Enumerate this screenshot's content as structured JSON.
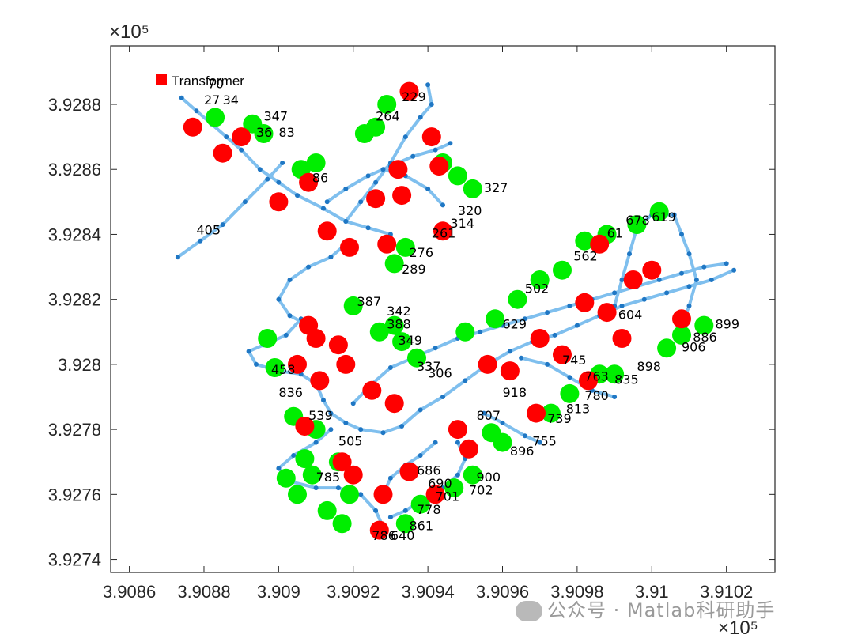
{
  "watermark": {
    "text": "公众号 · Matlab科研助手",
    "icon": "wechat-icon"
  },
  "chart_data": {
    "type": "scatter",
    "title": "",
    "xlabel": "",
    "ylabel": "",
    "x_exponent_label": "×10⁵",
    "y_exponent_label": "×10⁵",
    "xlim": [
      3.90855,
      3.91033
    ],
    "ylim": [
      3.92736,
      3.92898
    ],
    "x_ticks": [
      3.9086,
      3.9088,
      3.909,
      3.9092,
      3.9094,
      3.9096,
      3.9098,
      3.91,
      3.9102
    ],
    "x_tick_labels": [
      "3.9086",
      "3.9088",
      "3.909",
      "3.9092",
      "3.9094",
      "3.9096",
      "3.9098",
      "3.91",
      "3.9102"
    ],
    "y_ticks": [
      3.9274,
      3.9276,
      3.9278,
      3.928,
      3.9282,
      3.9284,
      3.9286,
      3.9288
    ],
    "y_tick_labels": [
      "3.9274",
      "3.9276",
      "3.9278",
      "3.928",
      "3.9282",
      "3.9284",
      "3.9286",
      "3.9288"
    ],
    "grid": false,
    "legend": {
      "position": "top-left",
      "entries": [
        {
          "name": "Transformer",
          "color": "#ff0000"
        }
      ]
    },
    "colors": {
      "line": "#7fbfee",
      "node": "#1f77c4",
      "transformer": "#ff0000",
      "load": "#00ee00",
      "axis": "#262626"
    },
    "paths": [
      [
        [
          3.90874,
          3.92882
        ],
        [
          3.90878,
          3.92878
        ],
        [
          3.90882,
          3.92874
        ],
        [
          3.90886,
          3.9287
        ],
        [
          3.9089,
          3.92866
        ],
        [
          3.90895,
          3.9286
        ],
        [
          3.909,
          3.92856
        ],
        [
          3.90905,
          3.92852
        ],
        [
          3.90912,
          3.92848
        ],
        [
          3.90918,
          3.92844
        ],
        [
          3.90924,
          3.92842
        ],
        [
          3.9093,
          3.9284
        ]
      ],
      [
        [
          3.90873,
          3.92833
        ],
        [
          3.90879,
          3.92838
        ],
        [
          3.90885,
          3.92843
        ],
        [
          3.90891,
          3.9285
        ],
        [
          3.90897,
          3.92857
        ],
        [
          3.90901,
          3.92862
        ]
      ],
      [
        [
          3.90913,
          3.9285
        ],
        [
          3.90918,
          3.92854
        ],
        [
          3.90924,
          3.92858
        ],
        [
          3.9093,
          3.92861
        ],
        [
          3.90936,
          3.92864
        ],
        [
          3.90942,
          3.92866
        ],
        [
          3.90946,
          3.92868
        ]
      ],
      [
        [
          3.90918,
          3.92844
        ],
        [
          3.90922,
          3.9285
        ],
        [
          3.90926,
          3.92856
        ],
        [
          3.9093,
          3.92862
        ],
        [
          3.90934,
          3.9287
        ],
        [
          3.90938,
          3.92876
        ],
        [
          3.90941,
          3.9288
        ],
        [
          3.9094,
          3.92886
        ]
      ],
      [
        [
          3.90928,
          3.9286
        ],
        [
          3.90934,
          3.92858
        ],
        [
          3.9094,
          3.92854
        ],
        [
          3.90944,
          3.92849
        ]
      ],
      [
        [
          3.90919,
          3.92838
        ],
        [
          3.90914,
          3.92833
        ],
        [
          3.90908,
          3.9283
        ],
        [
          3.90903,
          3.92826
        ],
        [
          3.909,
          3.9282
        ],
        [
          3.90903,
          3.92815
        ],
        [
          3.90908,
          3.92812
        ]
      ],
      [
        [
          3.90906,
          3.92814
        ],
        [
          3.90902,
          3.92809
        ],
        [
          3.90896,
          3.92806
        ],
        [
          3.90892,
          3.92804
        ],
        [
          3.90894,
          3.928
        ],
        [
          3.909,
          3.92798
        ],
        [
          3.90906,
          3.92797
        ],
        [
          3.9091,
          3.92794
        ],
        [
          3.90912,
          3.92789
        ],
        [
          3.90914,
          3.92785
        ],
        [
          3.90918,
          3.92782
        ],
        [
          3.90922,
          3.9278
        ],
        [
          3.90928,
          3.92779
        ],
        [
          3.90933,
          3.92781
        ],
        [
          3.90938,
          3.92786
        ],
        [
          3.90944,
          3.9279
        ],
        [
          3.9095,
          3.92795
        ],
        [
          3.90956,
          3.928
        ],
        [
          3.90962,
          3.92804
        ],
        [
          3.90968,
          3.92807
        ],
        [
          3.90974,
          3.92809
        ],
        [
          3.9098,
          3.92812
        ],
        [
          3.90986,
          3.92815
        ],
        [
          3.90992,
          3.92818
        ],
        [
          3.90998,
          3.9282
        ],
        [
          3.91004,
          3.92822
        ],
        [
          3.9101,
          3.92824
        ],
        [
          3.91016,
          3.92826
        ],
        [
          3.91022,
          3.92829
        ]
      ],
      [
        [
          3.9092,
          3.92788
        ],
        [
          3.90925,
          3.92794
        ],
        [
          3.9093,
          3.92799
        ],
        [
          3.90936,
          3.92802
        ],
        [
          3.90942,
          3.92805
        ],
        [
          3.90948,
          3.92808
        ],
        [
          3.90954,
          3.9281
        ],
        [
          3.9096,
          3.92812
        ],
        [
          3.90966,
          3.92814
        ],
        [
          3.90972,
          3.92816
        ],
        [
          3.90978,
          3.92818
        ],
        [
          3.90984,
          3.9282
        ],
        [
          3.9099,
          3.92822
        ],
        [
          3.90996,
          3.92824
        ],
        [
          3.91002,
          3.92826
        ],
        [
          3.91008,
          3.92828
        ],
        [
          3.91014,
          3.9283
        ],
        [
          3.9102,
          3.92831
        ]
      ],
      [
        [
          3.90914,
          3.9278
        ],
        [
          3.9091,
          3.92776
        ],
        [
          3.90904,
          3.92772
        ],
        [
          3.909,
          3.92768
        ],
        [
          3.90903,
          3.92764
        ],
        [
          3.9091,
          3.92762
        ],
        [
          3.90916,
          3.92762
        ],
        [
          3.90922,
          3.9276
        ],
        [
          3.90926,
          3.92755
        ],
        [
          3.90928,
          3.9275
        ]
      ],
      [
        [
          3.90942,
          3.92776
        ],
        [
          3.90938,
          3.92772
        ],
        [
          3.90934,
          3.92769
        ],
        [
          3.9093,
          3.92765
        ],
        [
          3.90928,
          3.9276
        ]
      ],
      [
        [
          3.90948,
          3.92776
        ],
        [
          3.9095,
          3.92771
        ],
        [
          3.90948,
          3.92766
        ],
        [
          3.90944,
          3.92762
        ],
        [
          3.90938,
          3.92758
        ],
        [
          3.90934,
          3.92755
        ],
        [
          3.9093,
          3.92753
        ]
      ],
      [
        [
          3.90955,
          3.92785
        ],
        [
          3.9096,
          3.92782
        ],
        [
          3.90966,
          3.92778
        ],
        [
          3.9097,
          3.92776
        ]
      ],
      [
        [
          3.90965,
          3.92802
        ],
        [
          3.90972,
          3.928
        ],
        [
          3.90978,
          3.92796
        ],
        [
          3.90984,
          3.92792
        ],
        [
          3.9099,
          3.9279
        ]
      ],
      [
        [
          3.9099,
          3.92818
        ],
        [
          3.90992,
          3.92826
        ],
        [
          3.90994,
          3.92834
        ],
        [
          3.90996,
          3.92842
        ],
        [
          3.91,
          3.92846
        ],
        [
          3.91006,
          3.92846
        ]
      ],
      [
        [
          3.91006,
          3.92846
        ],
        [
          3.91008,
          3.9284
        ],
        [
          3.9101,
          3.92834
        ],
        [
          3.91012,
          3.92826
        ],
        [
          3.9101,
          3.92818
        ],
        [
          3.91008,
          3.92812
        ]
      ]
    ],
    "transformers": [
      [
        3.90877,
        3.92873
      ],
      [
        3.90885,
        3.92865
      ],
      [
        3.9089,
        3.9287
      ],
      [
        3.909,
        3.9285
      ],
      [
        3.90908,
        3.92856
      ],
      [
        3.90913,
        3.92841
      ],
      [
        3.90919,
        3.92836
      ],
      [
        3.90926,
        3.92851
      ],
      [
        3.90932,
        3.9286
      ],
      [
        3.90933,
        3.92852
      ],
      [
        3.90935,
        3.92884
      ],
      [
        3.90941,
        3.9287
      ],
      [
        3.90943,
        3.92861
      ],
      [
        3.90929,
        3.92837
      ],
      [
        3.90944,
        3.92841
      ],
      [
        3.90908,
        3.92812
      ],
      [
        3.9091,
        3.92808
      ],
      [
        3.90916,
        3.92806
      ],
      [
        3.90905,
        3.928
      ],
      [
        3.90911,
        3.92795
      ],
      [
        3.90918,
        3.928
      ],
      [
        3.90925,
        3.92792
      ],
      [
        3.90931,
        3.92788
      ],
      [
        3.90948,
        3.9278
      ],
      [
        3.90951,
        3.92774
      ],
      [
        3.90935,
        3.92767
      ],
      [
        3.90928,
        3.9276
      ],
      [
        3.90942,
        3.9276
      ],
      [
        3.90917,
        3.9277
      ],
      [
        3.9092,
        3.92766
      ],
      [
        3.90927,
        3.92749
      ],
      [
        3.90907,
        3.92781
      ],
      [
        3.90956,
        3.928
      ],
      [
        3.90962,
        3.92798
      ],
      [
        3.9097,
        3.92808
      ],
      [
        3.90976,
        3.92803
      ],
      [
        3.90983,
        3.92795
      ],
      [
        3.90969,
        3.92785
      ],
      [
        3.90982,
        3.92819
      ],
      [
        3.90988,
        3.92816
      ],
      [
        3.90995,
        3.92826
      ],
      [
        3.91,
        3.92829
      ],
      [
        3.90986,
        3.92837
      ],
      [
        3.91008,
        3.92814
      ],
      [
        3.90992,
        3.92808
      ]
    ],
    "loads": [
      [
        3.90883,
        3.92876
      ],
      [
        3.90893,
        3.92874
      ],
      [
        3.90896,
        3.92871
      ],
      [
        3.90906,
        3.9286
      ],
      [
        3.9091,
        3.92862
      ],
      [
        3.90923,
        3.92871
      ],
      [
        3.90926,
        3.92873
      ],
      [
        3.90929,
        3.9288
      ],
      [
        3.90944,
        3.92862
      ],
      [
        3.90948,
        3.92858
      ],
      [
        3.90934,
        3.92836
      ],
      [
        3.90931,
        3.92831
      ],
      [
        3.90952,
        3.92854
      ],
      [
        3.90907,
        3.92771
      ],
      [
        3.90909,
        3.92766
      ],
      [
        3.9091,
        3.9278
      ],
      [
        3.90916,
        3.9277
      ],
      [
        3.90919,
        3.9276
      ],
      [
        3.90917,
        3.92751
      ],
      [
        3.90897,
        3.92808
      ],
      [
        3.90899,
        3.92799
      ],
      [
        3.90904,
        3.92784
      ],
      [
        3.90902,
        3.92765
      ],
      [
        3.90905,
        3.9276
      ],
      [
        3.90913,
        3.92755
      ],
      [
        3.90937,
        3.92802
      ],
      [
        3.90931,
        3.92812
      ],
      [
        3.90927,
        3.9281
      ],
      [
        3.9092,
        3.92818
      ],
      [
        3.90933,
        3.92807
      ],
      [
        3.90934,
        3.92751
      ],
      [
        3.90938,
        3.92757
      ],
      [
        3.90947,
        3.92762
      ],
      [
        3.90952,
        3.92766
      ],
      [
        3.9096,
        3.92776
      ],
      [
        3.90957,
        3.92779
      ],
      [
        3.90973,
        3.92785
      ],
      [
        3.90978,
        3.92791
      ],
      [
        3.9099,
        3.92797
      ],
      [
        3.90986,
        3.92797
      ],
      [
        3.91004,
        3.92805
      ],
      [
        3.91008,
        3.92809
      ],
      [
        3.91014,
        3.92812
      ],
      [
        3.9095,
        3.9281
      ],
      [
        3.90958,
        3.92814
      ],
      [
        3.90964,
        3.9282
      ],
      [
        3.9097,
        3.92826
      ],
      [
        3.90976,
        3.92829
      ],
      [
        3.90982,
        3.92838
      ],
      [
        3.90988,
        3.9284
      ],
      [
        3.90996,
        3.92843
      ],
      [
        3.91002,
        3.92847
      ]
    ],
    "node_labels": [
      {
        "text": "27",
        "x": 3.9088,
        "y": 3.9288
      },
      {
        "text": "34",
        "x": 3.90885,
        "y": 3.9288
      },
      {
        "text": "70",
        "x": 3.90881,
        "y": 3.92885
      },
      {
        "text": "347",
        "x": 3.90896,
        "y": 3.92875
      },
      {
        "text": "36",
        "x": 3.90894,
        "y": 3.9287
      },
      {
        "text": "83",
        "x": 3.909,
        "y": 3.9287
      },
      {
        "text": "86",
        "x": 3.90909,
        "y": 3.92856
      },
      {
        "text": "264",
        "x": 3.90926,
        "y": 3.92875
      },
      {
        "text": "229",
        "x": 3.90933,
        "y": 3.92881
      },
      {
        "text": "320",
        "x": 3.90948,
        "y": 3.92846
      },
      {
        "text": "314",
        "x": 3.90946,
        "y": 3.92842
      },
      {
        "text": "327",
        "x": 3.90955,
        "y": 3.92853
      },
      {
        "text": "276",
        "x": 3.90935,
        "y": 3.92833
      },
      {
        "text": "289",
        "x": 3.90933,
        "y": 3.92828
      },
      {
        "text": "261",
        "x": 3.90941,
        "y": 3.92839
      },
      {
        "text": "405",
        "x": 3.90878,
        "y": 3.9284
      },
      {
        "text": "387",
        "x": 3.90921,
        "y": 3.92818
      },
      {
        "text": "342",
        "x": 3.90929,
        "y": 3.92815
      },
      {
        "text": "388",
        "x": 3.90929,
        "y": 3.92811
      },
      {
        "text": "349",
        "x": 3.90932,
        "y": 3.92806
      },
      {
        "text": "337",
        "x": 3.90937,
        "y": 3.92798
      },
      {
        "text": "306",
        "x": 3.9094,
        "y": 3.92796
      },
      {
        "text": "458",
        "x": 3.90898,
        "y": 3.92797
      },
      {
        "text": "836",
        "x": 3.909,
        "y": 3.9279
      },
      {
        "text": "539",
        "x": 3.90908,
        "y": 3.92783
      },
      {
        "text": "505",
        "x": 3.90916,
        "y": 3.92775
      },
      {
        "text": "785",
        "x": 3.9091,
        "y": 3.92764
      },
      {
        "text": "629",
        "x": 3.9096,
        "y": 3.92811
      },
      {
        "text": "502",
        "x": 3.90966,
        "y": 3.92822
      },
      {
        "text": "562",
        "x": 3.90979,
        "y": 3.92832
      },
      {
        "text": "61",
        "x": 3.90988,
        "y": 3.92839
      },
      {
        "text": "678",
        "x": 3.90993,
        "y": 3.92843
      },
      {
        "text": "619",
        "x": 3.91,
        "y": 3.92844
      },
      {
        "text": "899",
        "x": 3.91017,
        "y": 3.92811
      },
      {
        "text": "886",
        "x": 3.91011,
        "y": 3.92807
      },
      {
        "text": "906",
        "x": 3.91008,
        "y": 3.92804
      },
      {
        "text": "898",
        "x": 3.90996,
        "y": 3.92798
      },
      {
        "text": "835",
        "x": 3.9099,
        "y": 3.92794
      },
      {
        "text": "763",
        "x": 3.90982,
        "y": 3.92795
      },
      {
        "text": "780",
        "x": 3.90982,
        "y": 3.92789
      },
      {
        "text": "813",
        "x": 3.90977,
        "y": 3.92785
      },
      {
        "text": "739",
        "x": 3.90972,
        "y": 3.92782
      },
      {
        "text": "755",
        "x": 3.90968,
        "y": 3.92775
      },
      {
        "text": "896",
        "x": 3.90962,
        "y": 3.92772
      },
      {
        "text": "900",
        "x": 3.90953,
        "y": 3.92764
      },
      {
        "text": "702",
        "x": 3.90951,
        "y": 3.9276
      },
      {
        "text": "701",
        "x": 3.90942,
        "y": 3.92758
      },
      {
        "text": "778",
        "x": 3.90937,
        "y": 3.92754
      },
      {
        "text": "861",
        "x": 3.90935,
        "y": 3.92749
      },
      {
        "text": "640",
        "x": 3.9093,
        "y": 3.92746
      },
      {
        "text": "786",
        "x": 3.90925,
        "y": 3.92746
      },
      {
        "text": "686",
        "x": 3.90937,
        "y": 3.92766
      },
      {
        "text": "690",
        "x": 3.9094,
        "y": 3.92762
      },
      {
        "text": "807",
        "x": 3.90953,
        "y": 3.92783
      },
      {
        "text": "745",
        "x": 3.90976,
        "y": 3.928
      },
      {
        "text": "604",
        "x": 3.90991,
        "y": 3.92814
      },
      {
        "text": "918",
        "x": 3.9096,
        "y": 3.9279
      }
    ]
  }
}
